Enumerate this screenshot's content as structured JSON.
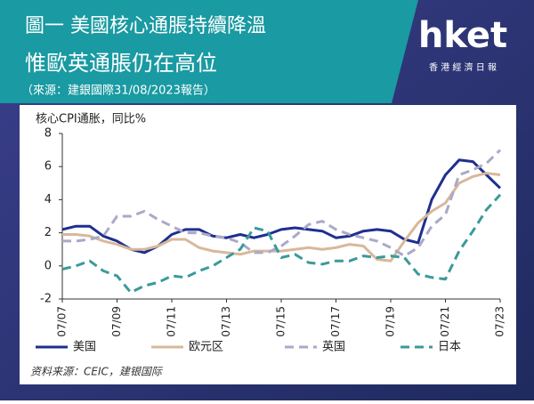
{
  "header": {
    "title_line1": "圖一 美國核心通脹持續降溫",
    "title_line2": "惟歐英通脹仍在高位",
    "source": "（來源：建銀國際31/08/2023報告）",
    "logo": "hket",
    "logo_sub": "香 港 經 濟 日 報"
  },
  "chart_data": {
    "type": "line",
    "title": "核心CPI通胀，同比%",
    "categories": [
      "07/07",
      null,
      null,
      null,
      "07/09",
      null,
      null,
      null,
      "07/11",
      null,
      null,
      null,
      "07/13",
      null,
      null,
      null,
      "07/15",
      null,
      null,
      null,
      "07/17",
      null,
      null,
      null,
      "07/19",
      null,
      null,
      null,
      "07/21",
      null,
      null,
      null,
      "07/23"
    ],
    "series": [
      {
        "name": "美国",
        "color": "#1f2f8f",
        "dash": false,
        "values": [
          2.2,
          2.4,
          2.4,
          1.8,
          1.5,
          1.0,
          0.8,
          1.2,
          1.9,
          2.2,
          2.2,
          1.8,
          1.7,
          1.9,
          1.7,
          1.9,
          2.2,
          2.3,
          2.2,
          2.1,
          1.7,
          1.8,
          2.1,
          2.2,
          2.1,
          1.6,
          1.4,
          4.0,
          5.5,
          6.4,
          6.3,
          5.5,
          4.7
        ]
      },
      {
        "name": "欧元区",
        "color": "#d8b89a",
        "dash": false,
        "values": [
          1.9,
          1.9,
          1.8,
          1.5,
          1.3,
          1.0,
          1.0,
          1.2,
          1.6,
          1.6,
          1.1,
          0.9,
          0.8,
          0.7,
          0.9,
          0.9,
          0.9,
          1.0,
          1.1,
          1.0,
          1.1,
          1.3,
          1.2,
          0.4,
          0.3,
          1.5,
          2.6,
          3.3,
          3.8,
          5.0,
          5.4,
          5.6,
          5.5
        ]
      },
      {
        "name": "英国",
        "color": "#a9a9c9",
        "dash": true,
        "values": [
          1.5,
          1.5,
          1.6,
          1.8,
          3.0,
          3.0,
          3.3,
          2.8,
          2.4,
          2.0,
          2.0,
          1.8,
          1.7,
          1.4,
          0.8,
          0.8,
          1.2,
          1.8,
          2.5,
          2.7,
          2.2,
          1.9,
          1.7,
          1.5,
          1.1,
          0.6,
          1.1,
          2.4,
          3.1,
          5.5,
          5.8,
          6.2,
          7.0
        ]
      },
      {
        "name": "日本",
        "color": "#3a9a9a",
        "dash": true,
        "values": [
          -0.2,
          0.0,
          0.3,
          -0.3,
          -0.6,
          -1.6,
          -1.2,
          -1.0,
          -0.6,
          -0.7,
          -0.3,
          0.0,
          0.5,
          1.0,
          2.3,
          2.1,
          0.5,
          0.7,
          0.2,
          0.1,
          0.3,
          0.3,
          0.6,
          0.5,
          0.6,
          0.5,
          -0.5,
          -0.7,
          -0.8,
          0.9,
          2.1,
          3.4,
          4.3
        ]
      }
    ],
    "ylim": [
      -2,
      8
    ],
    "yticks": [
      -2,
      0,
      2,
      4,
      6,
      8
    ],
    "annotation": "资料来源：CEIC，建银国际"
  }
}
